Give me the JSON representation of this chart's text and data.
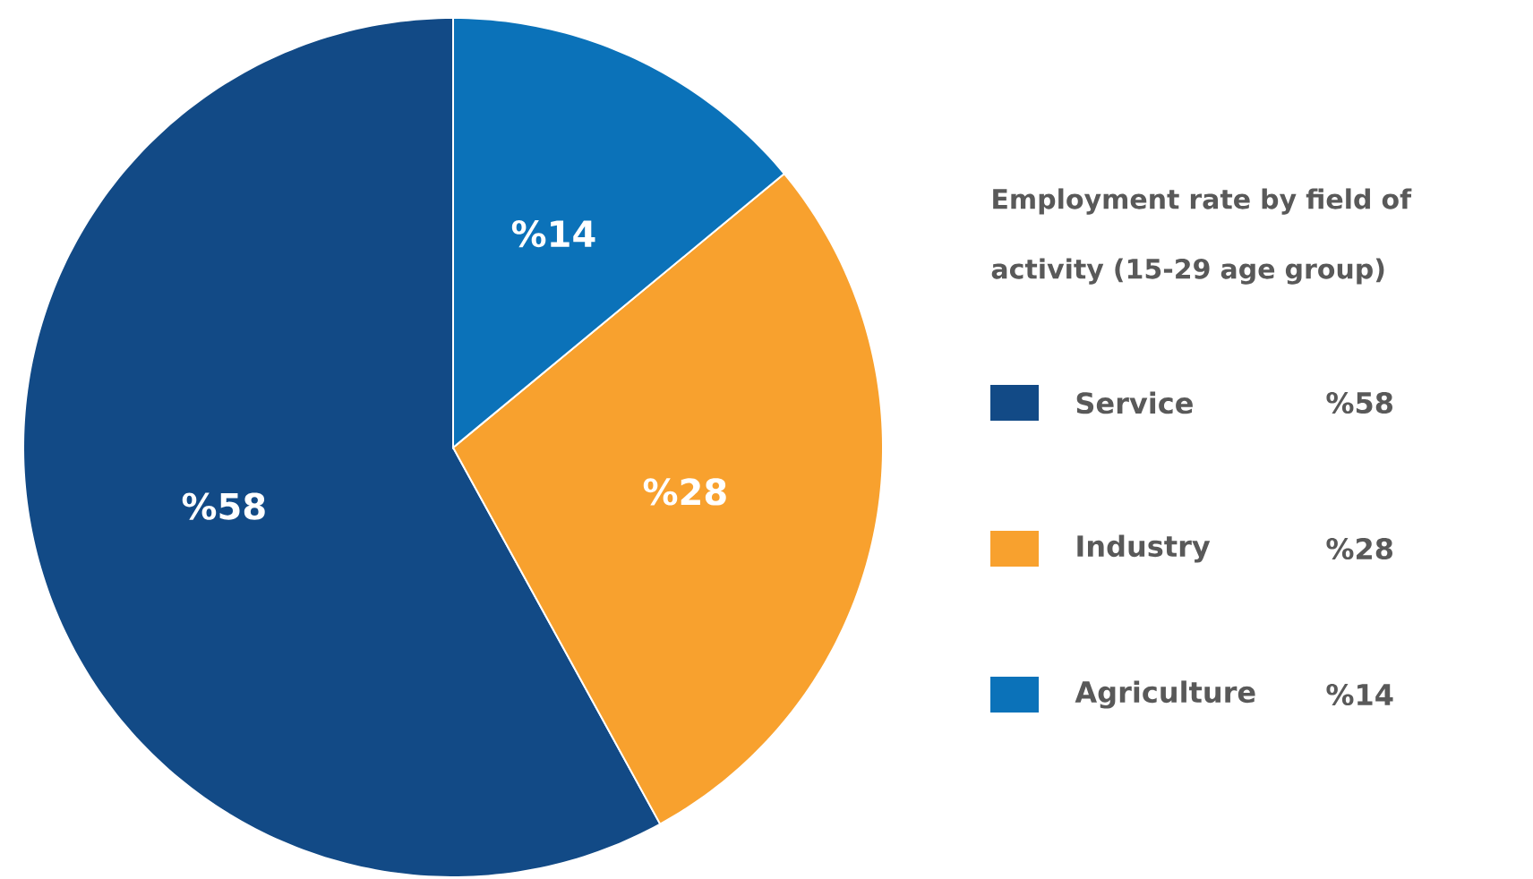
{
  "chart_data": {
    "type": "pie",
    "legend_title": "Employment rate by field of activity (15-29 age group)",
    "categories": [
      "Service",
      "Industry",
      "Agriculture"
    ],
    "values": [
      58,
      28,
      14
    ],
    "value_labels": [
      "%58",
      "%28",
      "%14"
    ],
    "colors": [
      "#124a86",
      "#f8a12e",
      "#0b72b9"
    ],
    "legend": "right"
  }
}
